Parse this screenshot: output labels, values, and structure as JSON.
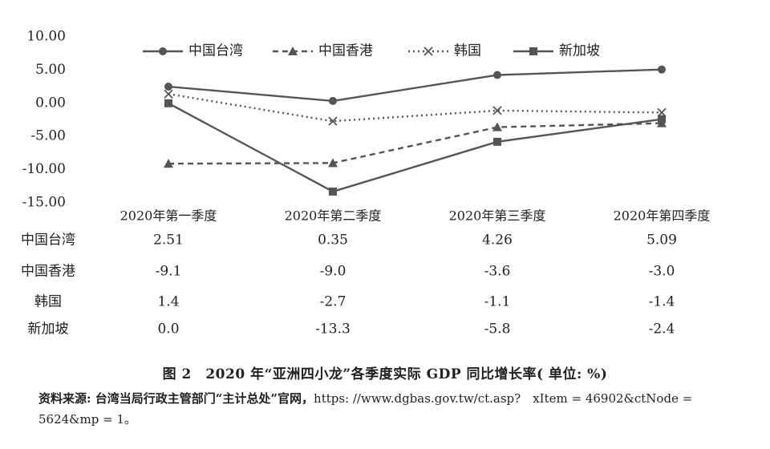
{
  "chart_data": {
    "type": "line",
    "categories": [
      "2020年第一季度",
      "2020年第二季度",
      "2020年第三季度",
      "2020年第四季度"
    ],
    "ylim": [
      -15,
      10
    ],
    "yticks": [
      "10.00",
      "5.00",
      "0.00",
      "-5.00",
      "-10.00",
      "-15.00"
    ],
    "series": [
      {
        "name": "中国台湾",
        "values": [
          2.51,
          0.35,
          4.26,
          5.09
        ],
        "table": [
          "2.51",
          "0.35",
          "4.26",
          "5.09"
        ],
        "marker": "circle",
        "dash": "solid"
      },
      {
        "name": "中国香港",
        "values": [
          -9.1,
          -9.0,
          -3.6,
          -3.0
        ],
        "table": [
          "-9.1",
          "-9.0",
          "-3.6",
          "-3.0"
        ],
        "marker": "triangle",
        "dash": "dashed"
      },
      {
        "name": "韩国",
        "values": [
          1.4,
          -2.7,
          -1.1,
          -1.4
        ],
        "table": [
          "1.4",
          "-2.7",
          "-1.1",
          "-1.4"
        ],
        "marker": "cross",
        "dash": "dotted"
      },
      {
        "name": "新加坡",
        "values": [
          0.0,
          -13.3,
          -5.8,
          -2.4
        ],
        "table": [
          "0.0",
          "-13.3",
          "-5.8",
          "-2.4"
        ],
        "marker": "square",
        "dash": "solid"
      }
    ],
    "grid": false,
    "legend_position": "top",
    "line_color": "#555555"
  },
  "caption": "图 2　2020 年“亚洲四小龙”各季度实际 GDP 同比增长率( 单位: %)",
  "source_label": "资料来源: 台湾当局行政主管部门“主计总处”官网，",
  "source_url": "https: //www.dgbas.gov.tw/ct.asp?　xItem = 46902&ctNode = 5624&mp = 1。"
}
